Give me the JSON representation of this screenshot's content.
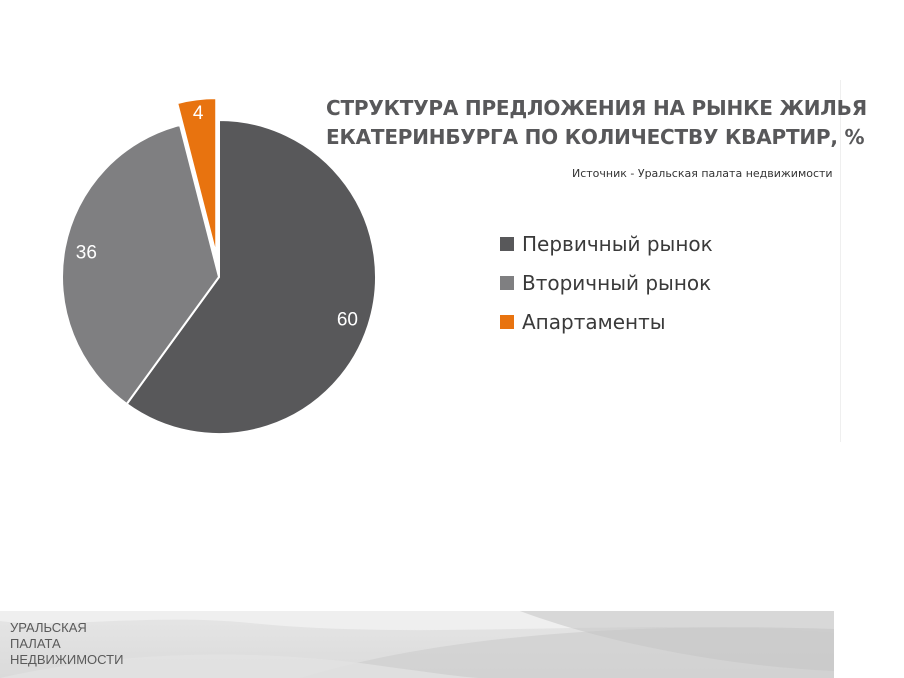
{
  "chart_data": {
    "type": "pie",
    "title_lines": [
      "СТРУКТУРА ПРЕДЛОЖЕНИЯ НА РЫНКЕ ЖИЛЬЯ",
      "ЕКАТЕРИНБУРГА ПО КОЛИЧЕСТВУ КВАРТИР, %"
    ],
    "source": "Источник - Уральская  палата недвижимости",
    "categories": [
      "Первичный рынок",
      "Вторичный рынок",
      "Апартаменты"
    ],
    "values": [
      60,
      36,
      4
    ],
    "value_labels": [
      "60",
      "36",
      "4"
    ],
    "colors": [
      "#58585a",
      "#7f7f81",
      "#e8730f"
    ],
    "exploded": [
      false,
      false,
      true
    ],
    "legend_position": "right"
  },
  "footer": {
    "logo_lines": [
      "УРАЛЬСКАЯ",
      "ПАЛАТА",
      "НЕДВИЖИМОСТИ"
    ]
  }
}
